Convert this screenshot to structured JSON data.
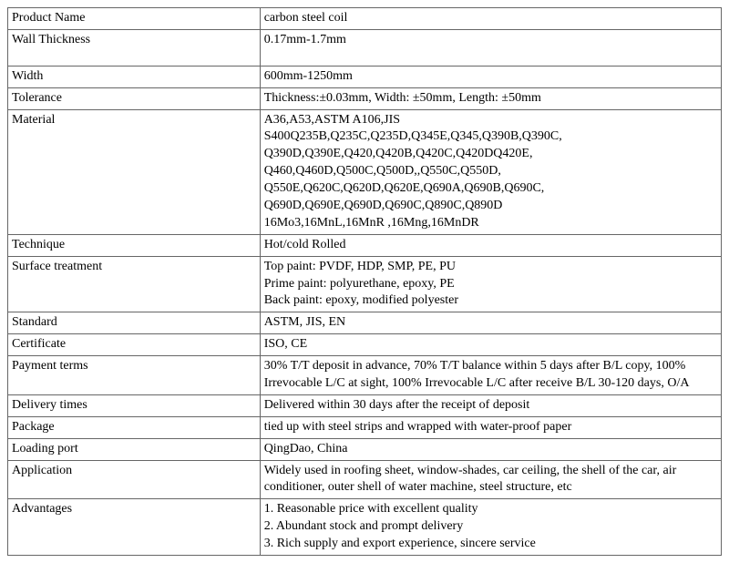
{
  "table": {
    "rows": [
      {
        "label": "Product Name",
        "value": "carbon steel coil",
        "tall": false
      },
      {
        "label": "Wall Thickness",
        "value": "0.17mm-1.7mm",
        "tall": true
      },
      {
        "label": "Width",
        "value": "600mm-1250mm",
        "tall": false
      },
      {
        "label": "Tolerance",
        "value": "Thickness:±0.03mm, Width: ±50mm, Length: ±50mm",
        "tall": false
      },
      {
        "label": "Material",
        "value": "A36,A53,ASTM A106,JIS\nS400Q235B,Q235C,Q235D,Q345E,Q345,Q390B,Q390C,\nQ390D,Q390E,Q420,Q420B,Q420C,Q420DQ420E,\nQ460,Q460D,Q500C,Q500D,,Q550C,Q550D,\nQ550E,Q620C,Q620D,Q620E,Q690A,Q690B,Q690C,\nQ690D,Q690E,Q690D,Q690C,Q890C,Q890D\n16Mo3,16MnL,16MnR ,16Mng,16MnDR",
        "tall": false
      },
      {
        "label": "Technique",
        "value": "Hot/cold Rolled",
        "tall": false
      },
      {
        "label": "Surface treatment",
        "value": "Top paint: PVDF, HDP, SMP, PE, PU\nPrime paint: polyurethane, epoxy, PE\nBack paint: epoxy, modified polyester",
        "tall": false
      },
      {
        "label": "Standard",
        "value": "ASTM, JIS, EN",
        "tall": false
      },
      {
        "label": "Certificate",
        "value": "ISO, CE",
        "tall": false
      },
      {
        "label": "Payment terms",
        "value": "30% T/T deposit in advance, 70% T/T balance within 5 days after B/L copy, 100% Irrevocable L/C at sight, 100% Irrevocable L/C after receive B/L 30-120 days, O/A",
        "tall": false
      },
      {
        "label": "Delivery times",
        "value": "Delivered within 30 days after the receipt of deposit",
        "tall": false
      },
      {
        "label": "Package",
        "value": "tied up with steel strips and wrapped with water-proof paper",
        "tall": false
      },
      {
        "label": "Loading port",
        "value": "QingDao, China",
        "tall": false
      },
      {
        "label": "Application",
        "value": "Widely used in roofing sheet, window-shades, car ceiling, the shell of the car, air conditioner, outer shell of water machine, steel structure, etc",
        "tall": false
      },
      {
        "label": "Advantages",
        "value": "1. Reasonable price with excellent quality\n2. Abundant stock and prompt delivery\n3. Rich supply and export experience, sincere service",
        "tall": false
      }
    ]
  },
  "style": {
    "border_color": "#666666",
    "text_color": "#000000",
    "background_color": "#ffffff",
    "font_family": "Georgia, Times New Roman, serif",
    "font_size_pt": 11,
    "label_col_width_pct": 35,
    "value_col_width_pct": 65
  }
}
